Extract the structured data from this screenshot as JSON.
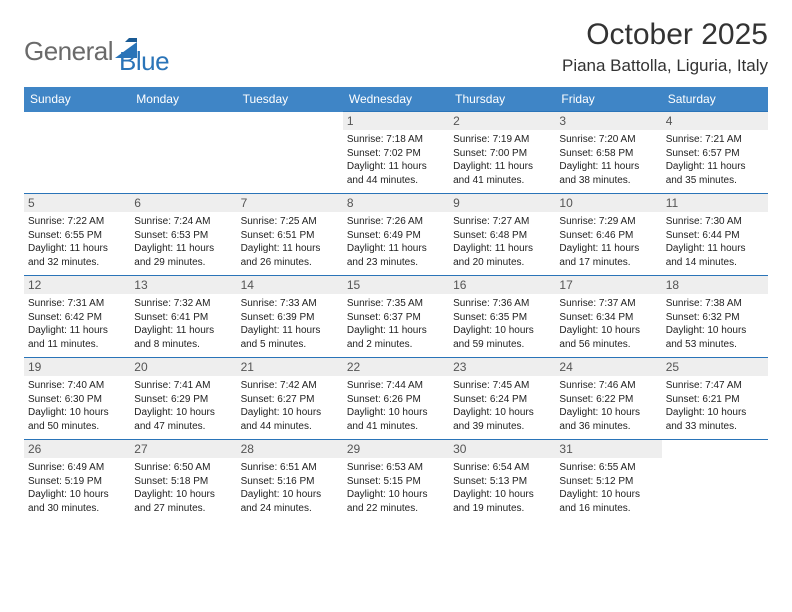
{
  "logo": {
    "general": "General",
    "blue": "Blue"
  },
  "title": "October 2025",
  "location": "Piana Battolla, Liguria, Italy",
  "colors": {
    "header_bg": "#3f85c6",
    "border": "#2a74b8",
    "daynum_bg": "#eeeeee",
    "logo_gray": "#6a6a6a",
    "logo_blue": "#2a74b8"
  },
  "weekdays": [
    "Sunday",
    "Monday",
    "Tuesday",
    "Wednesday",
    "Thursday",
    "Friday",
    "Saturday"
  ],
  "weeks": [
    [
      null,
      null,
      null,
      {
        "n": "1",
        "sr": "7:18 AM",
        "ss": "7:02 PM",
        "dl": "11 hours and 44 minutes."
      },
      {
        "n": "2",
        "sr": "7:19 AM",
        "ss": "7:00 PM",
        "dl": "11 hours and 41 minutes."
      },
      {
        "n": "3",
        "sr": "7:20 AM",
        "ss": "6:58 PM",
        "dl": "11 hours and 38 minutes."
      },
      {
        "n": "4",
        "sr": "7:21 AM",
        "ss": "6:57 PM",
        "dl": "11 hours and 35 minutes."
      }
    ],
    [
      {
        "n": "5",
        "sr": "7:22 AM",
        "ss": "6:55 PM",
        "dl": "11 hours and 32 minutes."
      },
      {
        "n": "6",
        "sr": "7:24 AM",
        "ss": "6:53 PM",
        "dl": "11 hours and 29 minutes."
      },
      {
        "n": "7",
        "sr": "7:25 AM",
        "ss": "6:51 PM",
        "dl": "11 hours and 26 minutes."
      },
      {
        "n": "8",
        "sr": "7:26 AM",
        "ss": "6:49 PM",
        "dl": "11 hours and 23 minutes."
      },
      {
        "n": "9",
        "sr": "7:27 AM",
        "ss": "6:48 PM",
        "dl": "11 hours and 20 minutes."
      },
      {
        "n": "10",
        "sr": "7:29 AM",
        "ss": "6:46 PM",
        "dl": "11 hours and 17 minutes."
      },
      {
        "n": "11",
        "sr": "7:30 AM",
        "ss": "6:44 PM",
        "dl": "11 hours and 14 minutes."
      }
    ],
    [
      {
        "n": "12",
        "sr": "7:31 AM",
        "ss": "6:42 PM",
        "dl": "11 hours and 11 minutes."
      },
      {
        "n": "13",
        "sr": "7:32 AM",
        "ss": "6:41 PM",
        "dl": "11 hours and 8 minutes."
      },
      {
        "n": "14",
        "sr": "7:33 AM",
        "ss": "6:39 PM",
        "dl": "11 hours and 5 minutes."
      },
      {
        "n": "15",
        "sr": "7:35 AM",
        "ss": "6:37 PM",
        "dl": "11 hours and 2 minutes."
      },
      {
        "n": "16",
        "sr": "7:36 AM",
        "ss": "6:35 PM",
        "dl": "10 hours and 59 minutes."
      },
      {
        "n": "17",
        "sr": "7:37 AM",
        "ss": "6:34 PM",
        "dl": "10 hours and 56 minutes."
      },
      {
        "n": "18",
        "sr": "7:38 AM",
        "ss": "6:32 PM",
        "dl": "10 hours and 53 minutes."
      }
    ],
    [
      {
        "n": "19",
        "sr": "7:40 AM",
        "ss": "6:30 PM",
        "dl": "10 hours and 50 minutes."
      },
      {
        "n": "20",
        "sr": "7:41 AM",
        "ss": "6:29 PM",
        "dl": "10 hours and 47 minutes."
      },
      {
        "n": "21",
        "sr": "7:42 AM",
        "ss": "6:27 PM",
        "dl": "10 hours and 44 minutes."
      },
      {
        "n": "22",
        "sr": "7:44 AM",
        "ss": "6:26 PM",
        "dl": "10 hours and 41 minutes."
      },
      {
        "n": "23",
        "sr": "7:45 AM",
        "ss": "6:24 PM",
        "dl": "10 hours and 39 minutes."
      },
      {
        "n": "24",
        "sr": "7:46 AM",
        "ss": "6:22 PM",
        "dl": "10 hours and 36 minutes."
      },
      {
        "n": "25",
        "sr": "7:47 AM",
        "ss": "6:21 PM",
        "dl": "10 hours and 33 minutes."
      }
    ],
    [
      {
        "n": "26",
        "sr": "6:49 AM",
        "ss": "5:19 PM",
        "dl": "10 hours and 30 minutes."
      },
      {
        "n": "27",
        "sr": "6:50 AM",
        "ss": "5:18 PM",
        "dl": "10 hours and 27 minutes."
      },
      {
        "n": "28",
        "sr": "6:51 AM",
        "ss": "5:16 PM",
        "dl": "10 hours and 24 minutes."
      },
      {
        "n": "29",
        "sr": "6:53 AM",
        "ss": "5:15 PM",
        "dl": "10 hours and 22 minutes."
      },
      {
        "n": "30",
        "sr": "6:54 AM",
        "ss": "5:13 PM",
        "dl": "10 hours and 19 minutes."
      },
      {
        "n": "31",
        "sr": "6:55 AM",
        "ss": "5:12 PM",
        "dl": "10 hours and 16 minutes."
      },
      null
    ]
  ],
  "labels": {
    "sunrise": "Sunrise: ",
    "sunset": "Sunset: ",
    "daylight": "Daylight: "
  }
}
